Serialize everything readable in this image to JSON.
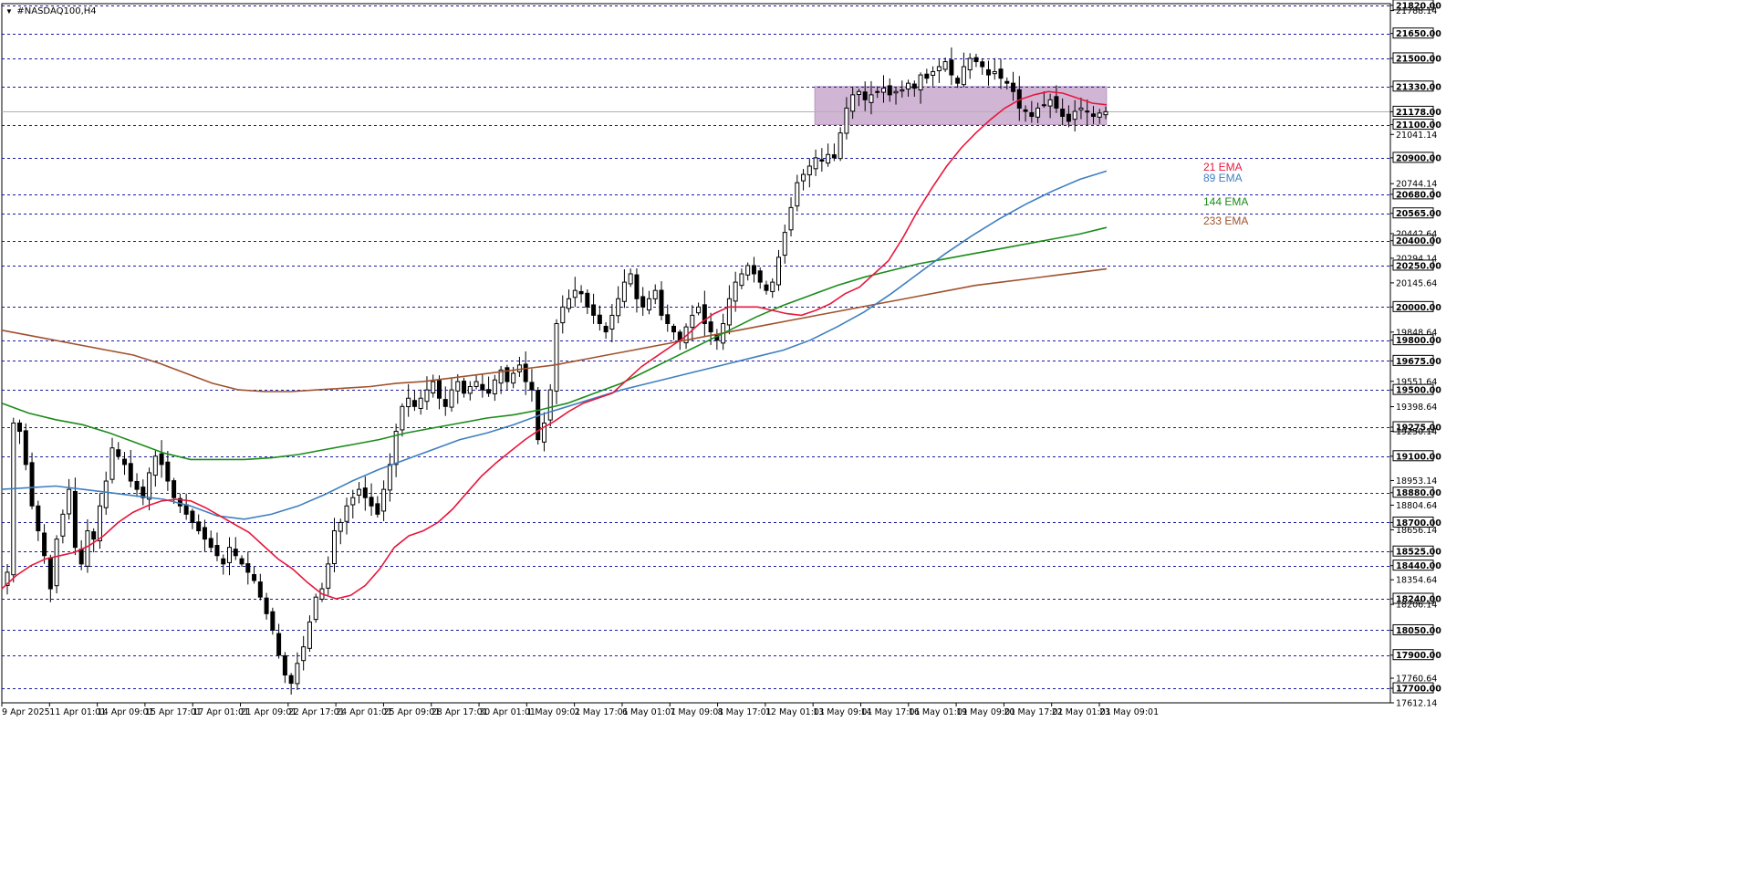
{
  "symbol_label": "#NASDAQ100,H4",
  "colors": {
    "bull": "#ffffff",
    "bear": "#000000",
    "grid": "#1a1aa6",
    "zone": "#c9a8cc",
    "ema21": "#e8173c",
    "ema89": "#3f7fbf",
    "ema144": "#1a8c1a",
    "ema233": "#a0522d"
  },
  "chart_data": {
    "type": "candlestick",
    "timeframe": "H4",
    "ylim": [
      17612.14,
      21830
    ],
    "price_axis_ticks": [
      "21820.00",
      "21788.14",
      "21650.00",
      "21500.00",
      "21330.00",
      "21178.00",
      "21100.00",
      "21041.14",
      "20900.00",
      "20744.14",
      "20680.00",
      "20565.00",
      "20442.64",
      "20400.00",
      "20294.14",
      "20250.00",
      "20145.64",
      "20000.00",
      "19848.64",
      "19800.00",
      "19675.00",
      "19551.64",
      "19500.00",
      "19398.64",
      "19275.00",
      "19250.14",
      "19100.00",
      "18953.14",
      "18880.00",
      "18804.64",
      "18700.00",
      "18656.14",
      "18525.00",
      "18440.00",
      "18354.64",
      "18240.00",
      "18206.14",
      "18050.00",
      "17900.00",
      "17760.64",
      "17700.00",
      "17612.14"
    ],
    "boxed_levels": [
      "21820.00",
      "21650.00",
      "21500.00",
      "21330.00",
      "21178.00",
      "21100.00",
      "20900.00",
      "20680.00",
      "20565.00",
      "20400.00",
      "20250.00",
      "20000.00",
      "19800.00",
      "19675.00",
      "19500.00",
      "19275.00",
      "19100.00",
      "18880.00",
      "18700.00",
      "18525.00",
      "18440.00",
      "18240.00",
      "18050.00",
      "17900.00",
      "17700.00"
    ],
    "dashed_levels": [
      21820,
      21650,
      21500,
      21330,
      21100,
      20900,
      20680,
      20565,
      20400,
      20250,
      20000,
      19800,
      19675,
      19500,
      19275,
      19100,
      18880,
      18700,
      18525,
      18440,
      18240,
      18050,
      17900,
      17700
    ],
    "current_price": 21178.0,
    "time_labels": [
      "9 Apr 2025",
      "11 Apr 01:01",
      "14 Apr 09:01",
      "15 Apr 17:01",
      "17 Apr 01:01",
      "21 Apr 09:01",
      "22 Apr 17:01",
      "24 Apr 01:01",
      "25 Apr 09:01",
      "28 Apr 17:01",
      "30 Apr 01:01",
      "1 May 09:01",
      "2 May 17:01",
      "6 May 01:01",
      "7 May 09:01",
      "8 May 17:01",
      "12 May 01:01",
      "13 May 09:01",
      "14 May 17:01",
      "16 May 01:01",
      "19 May 09:01",
      "20 May 17:01",
      "22 May 01:01",
      "23 May 09:01"
    ],
    "consolidation_zone": {
      "price_low": 21100,
      "price_high": 21330,
      "from_label": "13 May 09:01",
      "to_label": "23 May 09:01"
    },
    "close_series": [
      18400,
      19300,
      19250,
      19050,
      18800,
      18650,
      18500,
      18300,
      18600,
      18750,
      18900,
      18550,
      18450,
      18650,
      18600,
      18800,
      18950,
      19150,
      19100,
      19050,
      18950,
      18900,
      18850,
      19000,
      19100,
      19050,
      18950,
      18850,
      18800,
      18750,
      18700,
      18650,
      18600,
      18550,
      18500,
      18450,
      18550,
      18500,
      18450,
      18400,
      18350,
      18250,
      18150,
      18050,
      17900,
      17780,
      17730,
      17850,
      17950,
      18100,
      18250,
      18300,
      18450,
      18650,
      18700,
      18800,
      18850,
      18900,
      18850,
      18800,
      18750,
      18900,
      19050,
      19250,
      19400,
      19450,
      19400,
      19450,
      19500,
      19550,
      19450,
      19400,
      19500,
      19550,
      19480,
      19520,
      19550,
      19500,
      19480,
      19560,
      19620,
      19550,
      19600,
      19650,
      19550,
      19500,
      19200,
      19300,
      19500,
      19900,
      20000,
      20050,
      20100,
      20080,
      20000,
      19950,
      19900,
      19850,
      19950,
      20050,
      20150,
      20200,
      20050,
      20000,
      20050,
      20100,
      19950,
      19900,
      19850,
      19800,
      19880,
      19950,
      20000,
      19900,
      19850,
      19800,
      19900,
      20050,
      20150,
      20200,
      20250,
      20200,
      20150,
      20100,
      20150,
      20300,
      20450,
      20600,
      20750,
      20800,
      20850,
      20900,
      20880,
      20920,
      20900,
      21050,
      21200,
      21280,
      21300,
      21250,
      21280,
      21300,
      21320,
      21280,
      21300,
      21310,
      21350,
      21320,
      21400,
      21380,
      21420,
      21450,
      21480,
      21400,
      21350,
      21450,
      21500,
      21480,
      21450,
      21400,
      21420,
      21380,
      21350,
      21300,
      21200,
      21180,
      21150,
      21200,
      21220,
      21250,
      21200,
      21150,
      21120,
      21180,
      21200,
      21180,
      21150,
      21170,
      21178
    ],
    "ema21": [
      18300,
      18380,
      18440,
      18480,
      18500,
      18520,
      18560,
      18620,
      18700,
      18760,
      18800,
      18830,
      18840,
      18830,
      18790,
      18740,
      18690,
      18640,
      18560,
      18480,
      18420,
      18340,
      18270,
      18240,
      18260,
      18320,
      18420,
      18550,
      18620,
      18650,
      18700,
      18780,
      18880,
      18980,
      19060,
      19130,
      19200,
      19260,
      19310,
      19370,
      19420,
      19450,
      19480,
      19560,
      19640,
      19700,
      19760,
      19820,
      19900,
      19960,
      20000,
      20000,
      20000,
      19980,
      19960,
      19950,
      19980,
      20020,
      20080,
      20120,
      20200,
      20280,
      20420,
      20580,
      20720,
      20850,
      20960,
      21050,
      21130,
      21200,
      21250,
      21280,
      21300,
      21290,
      21260,
      21230,
      21220
    ],
    "ema89": [
      18900,
      18910,
      18920,
      18900,
      18880,
      18860,
      18840,
      18800,
      18740,
      18720,
      18750,
      18800,
      18870,
      18950,
      19020,
      19080,
      19140,
      19200,
      19240,
      19290,
      19350,
      19400,
      19450,
      19500,
      19540,
      19580,
      19620,
      19660,
      19700,
      19740,
      19800,
      19880,
      19970,
      20080,
      20200,
      20320,
      20430,
      20530,
      20620,
      20700,
      20770,
      20820
    ],
    "ema144": [
      19420,
      19360,
      19320,
      19290,
      19240,
      19180,
      19120,
      19080,
      19080,
      19080,
      19090,
      19110,
      19140,
      19170,
      19200,
      19240,
      19270,
      19300,
      19330,
      19350,
      19380,
      19420,
      19480,
      19540,
      19620,
      19700,
      19780,
      19860,
      19940,
      20010,
      20070,
      20130,
      20180,
      20220,
      20260,
      20290,
      20320,
      20350,
      20380,
      20410,
      20440,
      20480
    ],
    "ema233": [
      19860,
      19830,
      19800,
      19770,
      19740,
      19710,
      19660,
      19600,
      19540,
      19500,
      19490,
      19490,
      19500,
      19510,
      19520,
      19540,
      19550,
      19570,
      19590,
      19610,
      19630,
      19650,
      19680,
      19710,
      19740,
      19770,
      19800,
      19830,
      19860,
      19890,
      19920,
      19950,
      19980,
      20010,
      20040,
      20070,
      20100,
      20130,
      20150,
      20170,
      20190,
      20210,
      20230
    ],
    "legend": [
      {
        "name": "21 EMA",
        "color": "#e8173c"
      },
      {
        "name": "89 EMA",
        "color": "#3f7fbf"
      },
      {
        "name": "144 EMA",
        "color": "#1a8c1a"
      },
      {
        "name": "233 EMA",
        "color": "#a0522d"
      }
    ]
  }
}
